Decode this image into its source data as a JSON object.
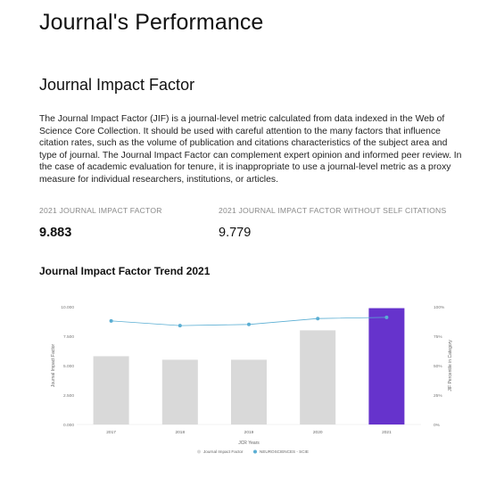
{
  "page": {
    "title": "Journal's Performance",
    "section_title": "Journal Impact Factor",
    "description": "The Journal Impact Factor (JIF) is a journal-level metric calculated from data indexed in the Web of Science Core Collection. It should be used with careful attention to the many factors that influence citation rates, such as the volume of publication and citations characteristics of the subject area and type of journal. The Journal Impact Factor can complement expert opinion and informed peer review. In the case of academic evaluation for tenure, it is inappropriate to use a journal-level metric as a proxy measure for individual researchers, institutions, or articles."
  },
  "metrics": [
    {
      "label": "2021 JOURNAL IMPACT FACTOR",
      "value": "9.883"
    },
    {
      "label": "2021 JOURNAL IMPACT FACTOR WITHOUT SELF CITATIONS",
      "value": "9.779"
    }
  ],
  "chart_title": "Journal Impact Factor Trend 2021",
  "chart_data": {
    "type": "bar",
    "categories": [
      "2017",
      "2018",
      "2019",
      "2020",
      "2021"
    ],
    "series": [
      {
        "name": "Journal Impact Factor",
        "type": "bar",
        "axis": "left",
        "values": [
          5.8,
          5.5,
          5.5,
          8.0,
          9.883
        ],
        "color": "#d9d9d9",
        "highlight_color": "#6633cc",
        "highlight_index": 4
      },
      {
        "name": "NEUROSCIENCES - SCIE",
        "type": "line",
        "axis": "right",
        "values": [
          88,
          84,
          85,
          90,
          91
        ],
        "color": "#5aaed3"
      }
    ],
    "xlabel": "JCR Years",
    "ylabel": "Journal Impact Factor",
    "y2label": "JIF Percentile in Category",
    "ylim": [
      0,
      10
    ],
    "y2lim": [
      0,
      100
    ],
    "yticks": [
      "0.000",
      "2.500",
      "5.000",
      "7.500",
      "10.000"
    ],
    "y2ticks": [
      "0%",
      "25%",
      "50%",
      "75%",
      "100%"
    ],
    "grid": false,
    "legend_position": "bottom-center"
  }
}
